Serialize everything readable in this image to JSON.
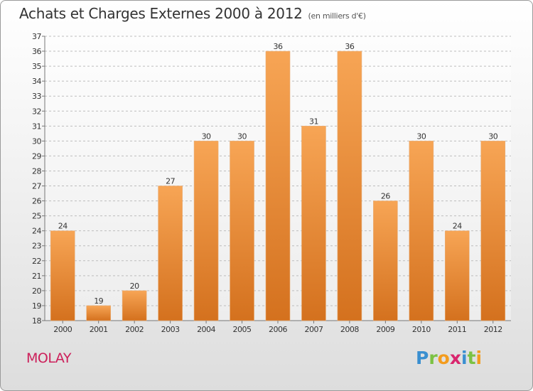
{
  "header": {
    "title": "Achats et Charges Externes 2000 à 2012",
    "unit": "(en milliers d'€)"
  },
  "footer": {
    "town": "MOLAY",
    "logo_letters": [
      "P",
      "r",
      "o",
      "x",
      "i",
      "t",
      "i"
    ],
    "logo_colors": [
      "#3a8fd0",
      "#7cc243",
      "#f39c1e",
      "#d9266e",
      "#3a8fd0",
      "#7cc243",
      "#f39c1e"
    ]
  },
  "chart_data": {
    "type": "bar",
    "title": "Achats et Charges Externes 2000 à 2012",
    "xlabel": "",
    "ylabel": "",
    "categories": [
      "2000",
      "2001",
      "2002",
      "2003",
      "2004",
      "2005",
      "2006",
      "2007",
      "2008",
      "2009",
      "2010",
      "2011",
      "2012"
    ],
    "values": [
      24,
      19,
      20,
      27,
      30,
      30,
      36,
      31,
      36,
      26,
      30,
      24,
      30
    ],
    "ylim": [
      18,
      37
    ],
    "yticks": [
      18,
      19,
      20,
      21,
      22,
      23,
      24,
      25,
      26,
      27,
      28,
      29,
      30,
      31,
      32,
      33,
      34,
      35,
      36,
      37
    ],
    "grid": true,
    "bar_color_top": "#f7a555",
    "bar_color_bottom": "#d4711e"
  }
}
